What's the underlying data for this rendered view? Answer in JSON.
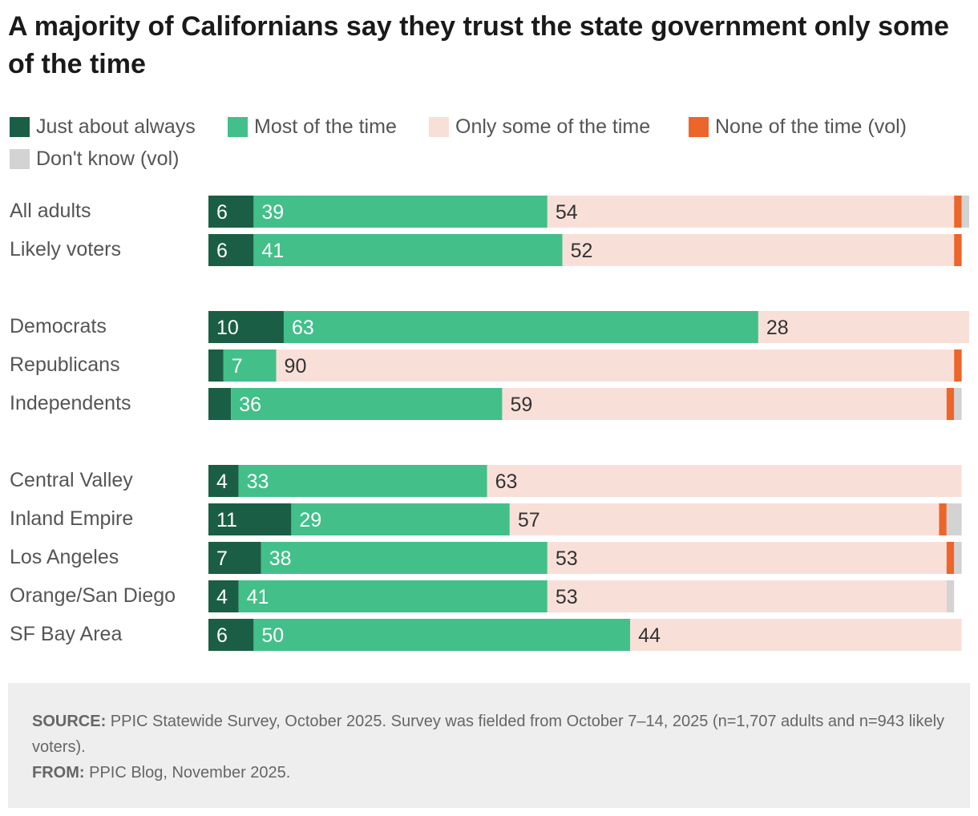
{
  "title": "A majority of Californians say they trust the state government only some of the time",
  "legend": [
    {
      "label": "Just about always",
      "color": "#1b5e46"
    },
    {
      "label": "Most of the time",
      "color": "#43bf8a"
    },
    {
      "label": "Only some of the time",
      "color": "#f8e0d9"
    },
    {
      "label": "None of the time (vol)",
      "color": "#ec652b"
    },
    {
      "label": "Don't know (vol)",
      "color": "#d3d3d3"
    }
  ],
  "chart_data": {
    "type": "bar",
    "orientation": "horizontal",
    "stacked": true,
    "title": "A majority of Californians say they trust the state government only some of the time",
    "categories": [
      "All adults",
      "Likely voters",
      "Democrats",
      "Republicans",
      "Independents",
      "Central Valley",
      "Inland Empire",
      "Los Angeles",
      "Orange/San Diego",
      "SF Bay Area"
    ],
    "groups": [
      [
        0,
        1
      ],
      [
        2,
        3,
        4
      ],
      [
        5,
        6,
        7,
        8,
        9
      ]
    ],
    "series": [
      {
        "name": "Just about always",
        "values": [
          6,
          6,
          10,
          2,
          3,
          4,
          11,
          7,
          4,
          6
        ],
        "labels": [
          "6",
          "6",
          "10",
          "",
          "",
          "4",
          "11",
          "7",
          "4",
          "6"
        ]
      },
      {
        "name": "Most of the time",
        "values": [
          39,
          41,
          63,
          7,
          36,
          33,
          29,
          38,
          41,
          50
        ],
        "labels": [
          "39",
          "41",
          "63",
          "7",
          "36",
          "33",
          "29",
          "38",
          "41",
          "50"
        ]
      },
      {
        "name": "Only some of the time",
        "values": [
          54,
          52,
          28,
          90,
          59,
          63,
          57,
          53,
          53,
          44
        ],
        "labels": [
          "54",
          "52",
          "28",
          "90",
          "59",
          "63",
          "57",
          "53",
          "53",
          "44"
        ]
      },
      {
        "name": "None of the time (vol)",
        "values": [
          1,
          1,
          0,
          1,
          1,
          0,
          1,
          1,
          0,
          0
        ],
        "labels": [
          "",
          "",
          "",
          "",
          "",
          "",
          "",
          "",
          "",
          ""
        ]
      },
      {
        "name": "Don't know (vol)",
        "values": [
          1,
          0,
          0,
          0,
          1,
          0,
          2,
          1,
          1,
          0
        ],
        "labels": [
          "",
          "",
          "",
          "",
          "",
          "",
          "",
          "",
          "",
          ""
        ]
      }
    ],
    "xlim": [
      0,
      101
    ],
    "xlabel": "",
    "ylabel": ""
  },
  "footer": {
    "source_label": "SOURCE:",
    "source_text": "PPIC Statewide Survey, October 2025. Survey was fielded from October 7–14, 2025 (n=1,707 adults and n=943 likely voters).",
    "from_label": "FROM:",
    "from_text": "PPIC Blog, November 2025."
  }
}
